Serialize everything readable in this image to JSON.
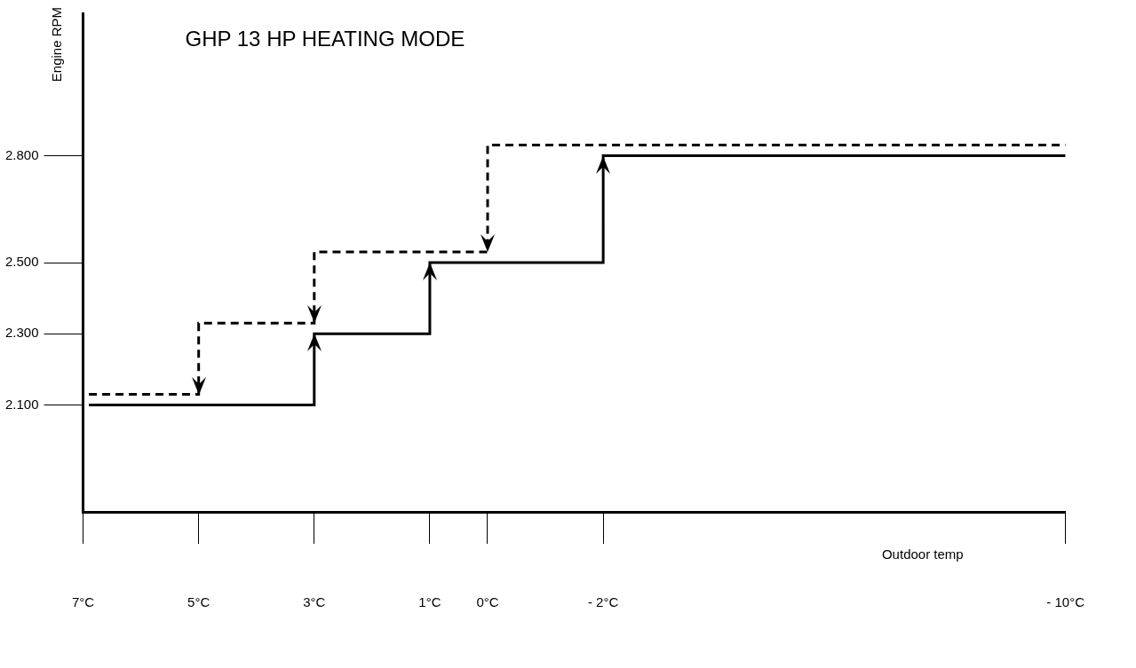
{
  "chart_data": {
    "type": "step",
    "title": "GHP 13 HP HEATING MODE",
    "xlabel": "Outdoor temp",
    "ylabel": "Engine RPM",
    "xlim": [
      7,
      -10
    ],
    "xticks": [
      {
        "value": 7,
        "label": "7°C"
      },
      {
        "value": 5,
        "label": "5°C"
      },
      {
        "value": 3,
        "label": "3°C"
      },
      {
        "value": 1,
        "label": "1°C"
      },
      {
        "value": 0,
        "label": "0°C"
      },
      {
        "value": -2,
        "label": "- 2°C"
      },
      {
        "value": -10,
        "label": "- 10°C"
      }
    ],
    "ylim": [
      1800,
      3200
    ],
    "yticks": [
      {
        "value": 2100,
        "label": "2.100"
      },
      {
        "value": 2300,
        "label": "2.300"
      },
      {
        "value": 2500,
        "label": "2.500"
      },
      {
        "value": 2800,
        "label": "2.800"
      }
    ],
    "grid": false,
    "legend": false,
    "marker": "none",
    "series": [
      {
        "color": "#000000",
        "line_style": "solid",
        "x": [
          6.9,
          3,
          1,
          -2,
          -10
        ],
        "values": [
          2100,
          2300,
          2500,
          2800,
          2800
        ]
      },
      {
        "color": "#000000",
        "line_style": "dashed",
        "x": [
          6.9,
          5,
          3,
          0,
          -10
        ],
        "values": [
          2130,
          2330,
          2530,
          2830,
          2830
        ]
      }
    ]
  }
}
